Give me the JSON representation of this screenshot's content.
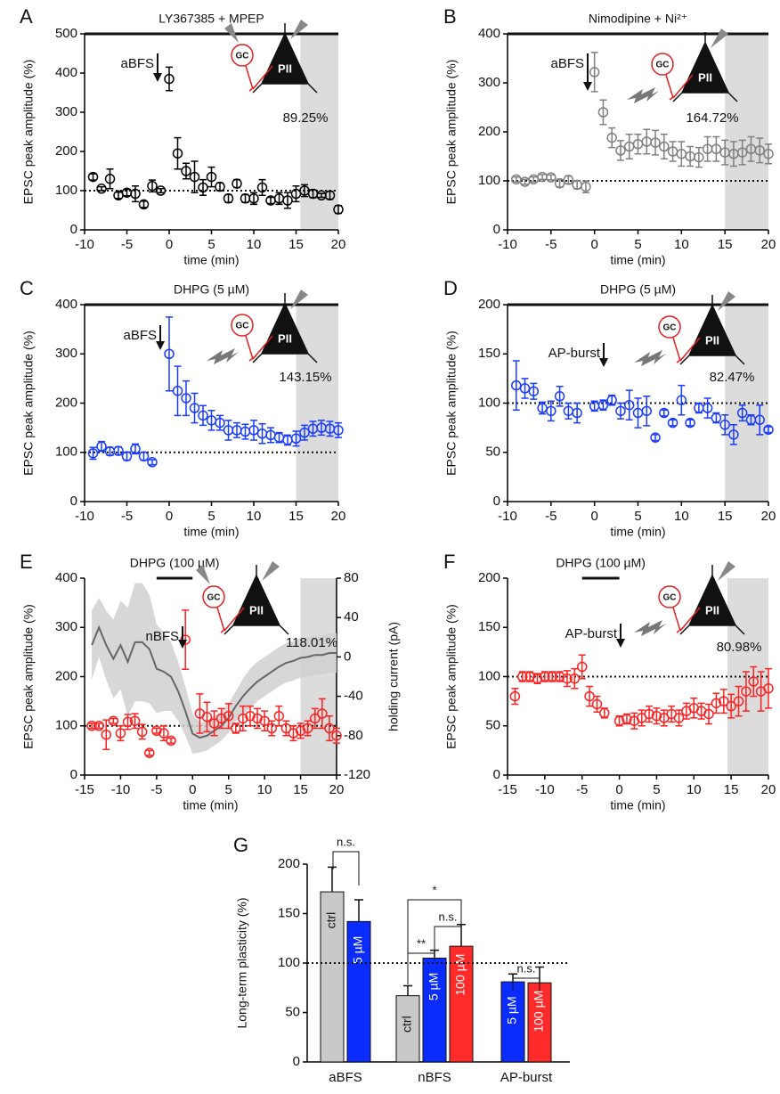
{
  "diagram": {
    "gc": "GC",
    "pii": "PII"
  },
  "chart_data": [
    {
      "type": "scatter",
      "panel": "A",
      "title": "LY367385 + MPEP",
      "arrow_label": "aBFS",
      "annotation": "89.25%",
      "xlabel": "time (min)",
      "ylabel": "EPSC peak amplitude (%)",
      "xlim": [
        -10,
        20
      ],
      "xticks": [
        -10,
        -5,
        0,
        5,
        10,
        15,
        20
      ],
      "ylim": [
        0,
        500
      ],
      "yticks": [
        0,
        100,
        200,
        300,
        400,
        500
      ],
      "reference": 100,
      "drug_bar": [
        -10,
        20
      ],
      "shade": [
        15.5,
        20
      ],
      "series": [
        {
          "color": "#000000",
          "x": [
            -9,
            -8,
            -7,
            -6,
            -5,
            -4,
            -3,
            -2,
            -1,
            0,
            1,
            2,
            3,
            4,
            5,
            6,
            7,
            8,
            9,
            10,
            11,
            12,
            13,
            14,
            15,
            16,
            17,
            18,
            19,
            20
          ],
          "values": [
            135,
            105,
            130,
            88,
            95,
            92,
            65,
            112,
            100,
            385,
            195,
            150,
            135,
            108,
            135,
            110,
            80,
            118,
            80,
            80,
            108,
            75,
            80,
            75,
            92,
            100,
            92,
            88,
            88,
            52
          ],
          "errors": [
            8,
            5,
            25,
            8,
            8,
            20,
            8,
            15,
            5,
            30,
            40,
            20,
            40,
            20,
            25,
            10,
            10,
            10,
            10,
            15,
            20,
            8,
            15,
            20,
            20,
            15,
            10,
            5,
            10,
            10
          ]
        }
      ]
    },
    {
      "type": "scatter",
      "panel": "B",
      "title": "Nimodipine + Ni²⁺",
      "arrow_label": "aBFS",
      "annotation": "164.72%",
      "xlabel": "time (min)",
      "ylabel": "EPSC peak amplitude (%)",
      "xlim": [
        -10,
        20
      ],
      "xticks": [
        -10,
        -5,
        0,
        5,
        10,
        15,
        20
      ],
      "ylim": [
        0,
        400
      ],
      "yticks": [
        0,
        100,
        200,
        300,
        400
      ],
      "reference": 100,
      "drug_bar": [
        -10,
        20
      ],
      "shade": [
        15,
        20
      ],
      "series": [
        {
          "color": "#808080",
          "x": [
            -9,
            -8,
            -7,
            -6,
            -5,
            -4,
            -3,
            -2,
            -1,
            0,
            1,
            2,
            3,
            4,
            5,
            6,
            7,
            8,
            9,
            10,
            11,
            12,
            13,
            14,
            15,
            16,
            17,
            18,
            19,
            20
          ],
          "values": [
            103,
            98,
            103,
            108,
            107,
            95,
            102,
            92,
            88,
            322,
            240,
            188,
            162,
            170,
            175,
            180,
            178,
            170,
            160,
            155,
            150,
            148,
            165,
            165,
            158,
            155,
            158,
            165,
            162,
            155
          ],
          "errors": [
            5,
            5,
            5,
            5,
            5,
            8,
            8,
            8,
            12,
            40,
            25,
            20,
            20,
            25,
            20,
            25,
            25,
            25,
            20,
            25,
            20,
            20,
            25,
            25,
            25,
            25,
            25,
            25,
            25,
            20
          ]
        }
      ]
    },
    {
      "type": "scatter",
      "panel": "C",
      "title": "DHPG (5 µM)",
      "arrow_label": "aBFS",
      "annotation": "143.15%",
      "xlabel": "time (min)",
      "ylabel": "EPSC peak amplitude (%)",
      "xlim": [
        -10,
        20
      ],
      "xticks": [
        -10,
        -5,
        0,
        5,
        10,
        15,
        20
      ],
      "ylim": [
        0,
        400
      ],
      "yticks": [
        0,
        100,
        200,
        300,
        400
      ],
      "reference": 100,
      "drug_bar": [
        -10,
        20
      ],
      "shade": [
        15,
        20
      ],
      "series": [
        {
          "color": "#1a3cff",
          "x": [
            -9,
            -8,
            -7,
            -6,
            -5,
            -4,
            -3,
            -2,
            0,
            1,
            2,
            3,
            4,
            5,
            6,
            7,
            8,
            9,
            10,
            11,
            12,
            13,
            14,
            15,
            16,
            17,
            18,
            19,
            20
          ],
          "values": [
            98,
            112,
            102,
            103,
            92,
            107,
            92,
            80,
            300,
            225,
            210,
            190,
            175,
            165,
            160,
            145,
            145,
            142,
            145,
            138,
            135,
            130,
            125,
            128,
            140,
            148,
            150,
            148,
            145
          ],
          "errors": [
            12,
            10,
            8,
            8,
            8,
            10,
            8,
            5,
            75,
            50,
            35,
            30,
            20,
            20,
            15,
            20,
            15,
            15,
            20,
            20,
            15,
            10,
            10,
            15,
            15,
            15,
            15,
            15,
            15
          ]
        }
      ]
    },
    {
      "type": "scatter",
      "panel": "D",
      "title": "DHPG (5 µM)",
      "arrow_label": "AP-burst",
      "annotation": "82.47%",
      "xlabel": "time (min)",
      "ylabel": "EPSC peak amplitude (%)",
      "xlim": [
        -10,
        20
      ],
      "xticks": [
        -10,
        -5,
        0,
        5,
        10,
        15,
        20
      ],
      "ylim": [
        0,
        200
      ],
      "yticks": [
        0,
        50,
        100,
        150,
        200
      ],
      "reference": 100,
      "drug_bar": [
        -10,
        20
      ],
      "shade": [
        15,
        20
      ],
      "series": [
        {
          "color": "#1a3cff",
          "x": [
            -9,
            -8,
            -7,
            -6,
            -5,
            -4,
            -3,
            -2,
            0,
            1,
            2,
            3,
            4,
            5,
            6,
            7,
            8,
            9,
            10,
            11,
            12,
            13,
            14,
            15,
            16,
            17,
            18,
            19,
            20
          ],
          "values": [
            118,
            115,
            112,
            95,
            92,
            107,
            92,
            90,
            97,
            98,
            103,
            92,
            98,
            90,
            92,
            65,
            90,
            80,
            103,
            80,
            95,
            95,
            85,
            78,
            68,
            90,
            83,
            83,
            73
          ],
          "errors": [
            25,
            10,
            8,
            6,
            10,
            10,
            8,
            10,
            5,
            5,
            5,
            8,
            15,
            15,
            15,
            3,
            3,
            3,
            15,
            3,
            5,
            10,
            5,
            10,
            10,
            8,
            5,
            15,
            3
          ]
        }
      ]
    },
    {
      "type": "scatter",
      "panel": "E",
      "title": "DHPG (100 µM)",
      "arrow_label": "nBFS",
      "annotation": "118.01%",
      "xlabel": "time (min)",
      "ylabel": "EPSC peak amplitude (%)",
      "y2label": "holding current (pA)",
      "xlim": [
        -15,
        20
      ],
      "xticks": [
        -15,
        -10,
        -5,
        0,
        5,
        10,
        15,
        20
      ],
      "ylim": [
        0,
        400
      ],
      "yticks": [
        0,
        100,
        200,
        300,
        400
      ],
      "y2lim": [
        -120,
        80
      ],
      "y2ticks": [
        -120,
        -80,
        -40,
        0,
        40,
        80
      ],
      "reference": 100,
      "drug_bar": [
        -5,
        0
      ],
      "shade": [
        15,
        20
      ],
      "series": [
        {
          "color": "#ff2020",
          "x": [
            -14,
            -13,
            -12,
            -11,
            -10,
            -9,
            -8,
            -7,
            -6,
            -5,
            -4,
            -3,
            -1,
            1,
            2,
            3,
            4,
            5,
            6,
            7,
            8,
            9,
            10,
            11,
            12,
            13,
            14,
            15,
            16,
            17,
            18,
            19,
            20
          ],
          "values": [
            100,
            100,
            82,
            110,
            85,
            108,
            110,
            88,
            45,
            90,
            85,
            70,
            275,
            125,
            118,
            105,
            115,
            120,
            95,
            115,
            120,
            115,
            110,
            95,
            120,
            95,
            85,
            90,
            95,
            115,
            125,
            95,
            80
          ],
          "errors": [
            5,
            5,
            30,
            5,
            15,
            15,
            15,
            15,
            5,
            5,
            15,
            5,
            60,
            40,
            30,
            25,
            20,
            25,
            10,
            25,
            20,
            20,
            20,
            15,
            20,
            15,
            15,
            15,
            15,
            20,
            30,
            25,
            15
          ]
        },
        {
          "color": "#666666",
          "axis": "y2",
          "style": "band",
          "x": [
            -14,
            -13,
            -12,
            -11,
            -10,
            -9,
            -8,
            -7,
            -6,
            -5,
            -4,
            -3,
            -2,
            -1,
            0,
            1,
            2,
            3,
            4,
            5,
            6,
            7,
            8,
            9,
            10,
            11,
            12,
            13,
            14,
            15,
            16,
            17,
            18,
            19,
            20
          ],
          "values": [
            12,
            30,
            12,
            -2,
            12,
            -5,
            15,
            15,
            8,
            -12,
            -15,
            -20,
            -35,
            -55,
            -78,
            -82,
            -80,
            -75,
            -70,
            -62,
            -50,
            -40,
            -32,
            -25,
            -20,
            -15,
            -10,
            -6,
            -4,
            -1,
            0,
            2,
            2,
            4,
            4
          ],
          "errors": [
            35,
            30,
            35,
            40,
            45,
            55,
            60,
            60,
            55,
            45,
            40,
            35,
            30,
            25,
            20,
            15,
            15,
            15,
            15,
            15,
            15,
            18,
            20,
            20,
            20,
            20,
            20,
            20,
            20,
            20,
            20,
            20,
            20,
            20,
            20
          ]
        }
      ]
    },
    {
      "type": "scatter",
      "panel": "F",
      "title": "DHPG (100 µM)",
      "arrow_label": "AP-burst",
      "annotation": "80.98%",
      "xlabel": "time (min)",
      "ylabel": "EPSC peak amplitude (%)",
      "xlim": [
        -15,
        20
      ],
      "xticks": [
        -15,
        -10,
        -5,
        0,
        5,
        10,
        15,
        20
      ],
      "ylim": [
        0,
        200
      ],
      "yticks": [
        0,
        50,
        100,
        150,
        200
      ],
      "reference": 100,
      "drug_bar": [
        -5,
        0
      ],
      "shade": [
        14.5,
        20
      ],
      "series": [
        {
          "color": "#ff2020",
          "x": [
            -14,
            -13,
            -12,
            -11,
            -10,
            -9,
            -8,
            -7,
            -6,
            -5,
            -4,
            -3,
            -2,
            0,
            1,
            2,
            3,
            4,
            5,
            6,
            7,
            8,
            9,
            10,
            11,
            12,
            13,
            14,
            15,
            16,
            17,
            18,
            19,
            20
          ],
          "values": [
            80,
            100,
            100,
            98,
            100,
            100,
            100,
            98,
            98,
            110,
            80,
            72,
            63,
            55,
            57,
            55,
            58,
            62,
            60,
            58,
            62,
            58,
            65,
            68,
            65,
            62,
            73,
            75,
            70,
            75,
            85,
            95,
            85,
            88
          ],
          "errors": [
            8,
            5,
            5,
            5,
            5,
            5,
            5,
            8,
            10,
            12,
            10,
            8,
            5,
            5,
            5,
            8,
            8,
            8,
            8,
            8,
            8,
            8,
            8,
            10,
            8,
            10,
            10,
            12,
            12,
            15,
            20,
            15,
            20,
            20
          ]
        }
      ]
    },
    {
      "type": "bar",
      "panel": "G",
      "ylabel": "Long-term plasticity (%)",
      "ylim": [
        0,
        200
      ],
      "yticks": [
        0,
        50,
        100,
        150,
        200
      ],
      "reference": 100,
      "groups": [
        {
          "name": "aBFS",
          "bars": [
            {
              "label": "ctrl",
              "value": 172,
              "error": 25,
              "color": "#c8c8c8"
            },
            {
              "label": "5 µM",
              "value": 142,
              "error": 22,
              "color": "#0a2cff"
            }
          ]
        },
        {
          "name": "nBFS",
          "bars": [
            {
              "label": "ctrl",
              "value": 67,
              "error": 10,
              "color": "#c8c8c8"
            },
            {
              "label": "5 µM",
              "value": 105,
              "error": 8,
              "color": "#0a2cff"
            },
            {
              "label": "100 µM",
              "value": 117,
              "error": 22,
              "color": "#ff2a2a"
            }
          ]
        },
        {
          "name": "AP-burst",
          "bars": [
            {
              "label": "5 µM",
              "value": 81,
              "error": 8,
              "color": "#0a2cff"
            },
            {
              "label": "100 µM",
              "value": 80,
              "error": 16,
              "color": "#ff2a2a"
            }
          ]
        }
      ],
      "comparisons": [
        "n.s.",
        "*",
        "n.s.",
        "**",
        "n.s."
      ]
    }
  ]
}
